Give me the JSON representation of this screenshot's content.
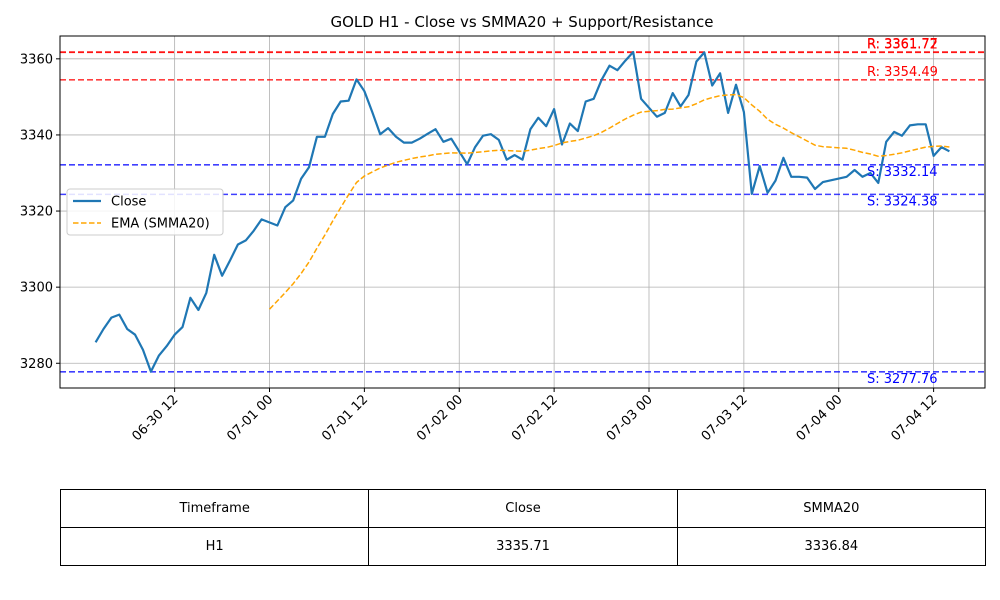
{
  "chart_data": {
    "type": "line",
    "title": "GOLD H1 - Close vs SMMA20 + Support/Resistance",
    "xlabel": "",
    "ylabel": "",
    "x_range": [
      "2025-06-29 21:30",
      "2025-07-04 18:30"
    ],
    "ylim": [
      3273.5,
      3366
    ],
    "y_ticks": [
      3280,
      3300,
      3320,
      3340,
      3360
    ],
    "x_ticks": [
      {
        "label": "06-30 12",
        "time": "2025-06-30 12:00"
      },
      {
        "label": "07-01 00",
        "time": "2025-07-01 00:00"
      },
      {
        "label": "07-01 12",
        "time": "2025-07-01 12:00"
      },
      {
        "label": "07-02 00",
        "time": "2025-07-02 00:00"
      },
      {
        "label": "07-02 12",
        "time": "2025-07-02 12:00"
      },
      {
        "label": "07-03 00",
        "time": "2025-07-03 00:00"
      },
      {
        "label": "07-03 12",
        "time": "2025-07-03 12:00"
      },
      {
        "label": "07-04 00",
        "time": "2025-07-04 00:00"
      },
      {
        "label": "07-04 12",
        "time": "2025-07-04 12:00"
      }
    ],
    "grid": true,
    "legend_position": "center-left",
    "series": [
      {
        "name": "Close",
        "color": "#1f77b4",
        "style": "solid",
        "points": [
          [
            "2025-06-30 02:00",
            3285.5
          ],
          [
            "2025-06-30 03:00",
            3289
          ],
          [
            "2025-06-30 04:00",
            3292
          ],
          [
            "2025-06-30 05:00",
            3292.8
          ],
          [
            "2025-06-30 06:00",
            3289
          ],
          [
            "2025-06-30 07:00",
            3287.5
          ],
          [
            "2025-06-30 08:00",
            3283.5
          ],
          [
            "2025-06-30 09:00",
            3277.8
          ],
          [
            "2025-06-30 10:00",
            3282
          ],
          [
            "2025-06-30 11:00",
            3284.5
          ],
          [
            "2025-06-30 12:00",
            3287.5
          ],
          [
            "2025-06-30 13:00",
            3289.5
          ],
          [
            "2025-06-30 14:00",
            3297.2
          ],
          [
            "2025-06-30 15:00",
            3294
          ],
          [
            "2025-06-30 16:00",
            3298.5
          ],
          [
            "2025-06-30 17:00",
            3308.5
          ],
          [
            "2025-06-30 18:00",
            3303
          ],
          [
            "2025-06-30 19:00",
            3307
          ],
          [
            "2025-06-30 20:00",
            3311.2
          ],
          [
            "2025-06-30 21:00",
            3312.3
          ],
          [
            "2025-06-30 22:00",
            3314.8
          ],
          [
            "2025-06-30 23:00",
            3317.8
          ],
          [
            "2025-07-01 01:00",
            3316.2
          ],
          [
            "2025-07-01 02:00",
            3321
          ],
          [
            "2025-07-01 03:00",
            3322.8
          ],
          [
            "2025-07-01 04:00",
            3328.5
          ],
          [
            "2025-07-01 05:00",
            3331.5
          ],
          [
            "2025-07-01 06:00",
            3339.5
          ],
          [
            "2025-07-01 07:00",
            3339.5
          ],
          [
            "2025-07-01 08:00",
            3345.5
          ],
          [
            "2025-07-01 09:00",
            3348.8
          ],
          [
            "2025-07-01 10:00",
            3349
          ],
          [
            "2025-07-01 11:00",
            3354.6
          ],
          [
            "2025-07-01 12:00",
            3351.5
          ],
          [
            "2025-07-01 13:00",
            3346
          ],
          [
            "2025-07-01 14:00",
            3340.2
          ],
          [
            "2025-07-01 15:00",
            3341.8
          ],
          [
            "2025-07-01 16:00",
            3339.5
          ],
          [
            "2025-07-01 17:00",
            3338
          ],
          [
            "2025-07-01 18:00",
            3338
          ],
          [
            "2025-07-01 19:00",
            3339
          ],
          [
            "2025-07-01 20:00",
            3340.3
          ],
          [
            "2025-07-01 21:00",
            3341.5
          ],
          [
            "2025-07-01 22:00",
            3338.2
          ],
          [
            "2025-07-01 23:00",
            3339
          ],
          [
            "2025-07-02 01:00",
            3332.3
          ],
          [
            "2025-07-02 02:00",
            3336.8
          ],
          [
            "2025-07-02 03:00",
            3339.8
          ],
          [
            "2025-07-02 04:00",
            3340.2
          ],
          [
            "2025-07-02 05:00",
            3338.7
          ],
          [
            "2025-07-02 06:00",
            3333.5
          ],
          [
            "2025-07-02 07:00",
            3334.7
          ],
          [
            "2025-07-02 08:00",
            3333.5
          ],
          [
            "2025-07-02 09:00",
            3341.5
          ],
          [
            "2025-07-02 10:00",
            3344.5
          ],
          [
            "2025-07-02 11:00",
            3342.3
          ],
          [
            "2025-07-02 12:00",
            3346.8
          ],
          [
            "2025-07-02 13:00",
            3337.5
          ],
          [
            "2025-07-02 14:00",
            3343
          ],
          [
            "2025-07-02 15:00",
            3341
          ],
          [
            "2025-07-02 16:00",
            3348.8
          ],
          [
            "2025-07-02 17:00",
            3349.5
          ],
          [
            "2025-07-02 18:00",
            3354.5
          ],
          [
            "2025-07-02 19:00",
            3358.2
          ],
          [
            "2025-07-02 20:00",
            3357
          ],
          [
            "2025-07-02 21:00",
            3359.5
          ],
          [
            "2025-07-02 22:00",
            3361.8
          ],
          [
            "2025-07-02 23:00",
            3349.5
          ],
          [
            "2025-07-03 01:00",
            3344.8
          ],
          [
            "2025-07-03 02:00",
            3345.8
          ],
          [
            "2025-07-03 03:00",
            3351
          ],
          [
            "2025-07-03 04:00",
            3347.5
          ],
          [
            "2025-07-03 05:00",
            3350.5
          ],
          [
            "2025-07-03 06:00",
            3359.3
          ],
          [
            "2025-07-03 07:00",
            3361.7
          ],
          [
            "2025-07-03 08:00",
            3353
          ],
          [
            "2025-07-03 09:00",
            3356.2
          ],
          [
            "2025-07-03 10:00",
            3345.8
          ],
          [
            "2025-07-03 11:00",
            3353.2
          ],
          [
            "2025-07-03 12:00",
            3346
          ],
          [
            "2025-07-03 13:00",
            3324.5
          ],
          [
            "2025-07-03 14:00",
            3331.8
          ],
          [
            "2025-07-03 15:00",
            3324.8
          ],
          [
            "2025-07-03 16:00",
            3328
          ],
          [
            "2025-07-03 17:00",
            3334
          ],
          [
            "2025-07-03 18:00",
            3329
          ],
          [
            "2025-07-03 19:00",
            3329
          ],
          [
            "2025-07-03 20:00",
            3328.8
          ],
          [
            "2025-07-03 21:00",
            3325.8
          ],
          [
            "2025-07-03 22:00",
            3327.6
          ],
          [
            "2025-07-04 01:00",
            3329
          ],
          [
            "2025-07-04 02:00",
            3330.8
          ],
          [
            "2025-07-04 03:00",
            3329
          ],
          [
            "2025-07-04 04:00",
            3330
          ],
          [
            "2025-07-04 05:00",
            3327.4
          ],
          [
            "2025-07-04 06:00",
            3338.2
          ],
          [
            "2025-07-04 07:00",
            3340.8
          ],
          [
            "2025-07-04 08:00",
            3339.8
          ],
          [
            "2025-07-04 09:00",
            3342.5
          ],
          [
            "2025-07-04 10:00",
            3342.8
          ],
          [
            "2025-07-04 11:00",
            3342.8
          ],
          [
            "2025-07-04 12:00",
            3334.5
          ],
          [
            "2025-07-04 13:00",
            3336.8
          ],
          [
            "2025-07-04 14:00",
            3335.71
          ]
        ]
      },
      {
        "name": "EMA (SMMA20)",
        "color": "#ffa500",
        "style": "dashed",
        "points": [
          [
            "2025-07-01 00:00",
            3294.2
          ],
          [
            "2025-07-01 01:00",
            3296.4
          ],
          [
            "2025-07-01 02:00",
            3298.6
          ],
          [
            "2025-07-01 03:00",
            3300.9
          ],
          [
            "2025-07-01 04:00",
            3303.6
          ],
          [
            "2025-07-01 05:00",
            3306.6
          ],
          [
            "2025-07-01 06:00",
            3310.2
          ],
          [
            "2025-07-01 07:00",
            3313.7
          ],
          [
            "2025-07-01 08:00",
            3317.4
          ],
          [
            "2025-07-01 09:00",
            3320.9
          ],
          [
            "2025-07-01 10:00",
            3324.3
          ],
          [
            "2025-07-01 11:00",
            3327.5
          ],
          [
            "2025-07-01 12:00",
            3329.2
          ],
          [
            "2025-07-01 13:00",
            3330.3
          ],
          [
            "2025-07-01 14:00",
            3331.3
          ],
          [
            "2025-07-01 15:00",
            3332.1
          ],
          [
            "2025-07-01 16:00",
            3332.8
          ],
          [
            "2025-07-01 17:00",
            3333.3
          ],
          [
            "2025-07-01 18:00",
            3333.8
          ],
          [
            "2025-07-01 19:00",
            3334.2
          ],
          [
            "2025-07-01 20:00",
            3334.5
          ],
          [
            "2025-07-01 21:00",
            3334.9
          ],
          [
            "2025-07-01 22:00",
            3335.1
          ],
          [
            "2025-07-01 23:00",
            3335.3
          ],
          [
            "2025-07-02 01:00",
            3335.2
          ],
          [
            "2025-07-02 02:00",
            3335.4
          ],
          [
            "2025-07-02 03:00",
            3335.6
          ],
          [
            "2025-07-02 04:00",
            3335.8
          ],
          [
            "2025-07-02 05:00",
            3336.0
          ],
          [
            "2025-07-02 06:00",
            3335.9
          ],
          [
            "2025-07-02 07:00",
            3335.8
          ],
          [
            "2025-07-02 08:00",
            3335.7
          ],
          [
            "2025-07-02 09:00",
            3336.0
          ],
          [
            "2025-07-02 10:00",
            3336.4
          ],
          [
            "2025-07-02 11:00",
            3336.7
          ],
          [
            "2025-07-02 12:00",
            3337.2
          ],
          [
            "2025-07-02 13:00",
            3337.9
          ],
          [
            "2025-07-02 14:00",
            3338.3
          ],
          [
            "2025-07-02 15:00",
            3338.6
          ],
          [
            "2025-07-02 16:00",
            3339.2
          ],
          [
            "2025-07-02 17:00",
            3339.8
          ],
          [
            "2025-07-02 18:00",
            3340.7
          ],
          [
            "2025-07-02 19:00",
            3341.8
          ],
          [
            "2025-07-02 20:00",
            3343.0
          ],
          [
            "2025-07-02 21:00",
            3344.2
          ],
          [
            "2025-07-02 22:00",
            3345.2
          ],
          [
            "2025-07-02 23:00",
            3346.0
          ],
          [
            "2025-07-03 01:00",
            3346.4
          ],
          [
            "2025-07-03 02:00",
            3346.7
          ],
          [
            "2025-07-03 03:00",
            3346.8
          ],
          [
            "2025-07-03 04:00",
            3347.1
          ],
          [
            "2025-07-03 05:00",
            3347.4
          ],
          [
            "2025-07-03 06:00",
            3348.2
          ],
          [
            "2025-07-03 07:00",
            3349.2
          ],
          [
            "2025-07-03 08:00",
            3349.8
          ],
          [
            "2025-07-03 09:00",
            3350.3
          ],
          [
            "2025-07-03 10:00",
            3350.5
          ],
          [
            "2025-07-03 11:00",
            3350.6
          ],
          [
            "2025-07-03 12:00",
            3349.8
          ],
          [
            "2025-07-03 13:00",
            3347.9
          ],
          [
            "2025-07-03 14:00",
            3346.2
          ],
          [
            "2025-07-03 15:00",
            3344.1
          ],
          [
            "2025-07-03 16:00",
            3342.8
          ],
          [
            "2025-07-03 17:00",
            3341.8
          ],
          [
            "2025-07-03 18:00",
            3340.6
          ],
          [
            "2025-07-03 19:00",
            3339.5
          ],
          [
            "2025-07-03 20:00",
            3338.4
          ],
          [
            "2025-07-03 21:00",
            3337.3
          ],
          [
            "2025-07-03 22:00",
            3336.9
          ],
          [
            "2025-07-04 01:00",
            3336.5
          ],
          [
            "2025-07-04 02:00",
            3336.0
          ],
          [
            "2025-07-04 03:00",
            3335.4
          ],
          [
            "2025-07-04 04:00",
            3335.0
          ],
          [
            "2025-07-04 05:00",
            3334.4
          ],
          [
            "2025-07-04 06:00",
            3334.6
          ],
          [
            "2025-07-04 07:00",
            3334.9
          ],
          [
            "2025-07-04 08:00",
            3335.3
          ],
          [
            "2025-07-04 09:00",
            3335.8
          ],
          [
            "2025-07-04 10:00",
            3336.3
          ],
          [
            "2025-07-04 11:00",
            3336.8
          ],
          [
            "2025-07-04 12:00",
            3337.0
          ],
          [
            "2025-07-04 13:00",
            3337.1
          ],
          [
            "2025-07-04 14:00",
            3336.84
          ]
        ]
      }
    ],
    "levels": [
      {
        "label": "R: 3361.72",
        "value": 3361.72,
        "type": "resistance",
        "color": "#ff0000"
      },
      {
        "label": "R: 3361.77",
        "value": 3361.77,
        "type": "resistance",
        "color": "#ff0000"
      },
      {
        "label": "R: 3354.49",
        "value": 3354.49,
        "type": "resistance",
        "color": "#ff0000"
      },
      {
        "label": "S: 3332.14",
        "value": 3332.14,
        "type": "support",
        "color": "#0000ff"
      },
      {
        "label": "S: 3324.38",
        "value": 3324.38,
        "type": "support",
        "color": "#0000ff"
      },
      {
        "label": "S: 3277.76",
        "value": 3277.76,
        "type": "support",
        "color": "#0000ff"
      }
    ]
  },
  "table": {
    "headers": [
      "Timeframe",
      "Close",
      "SMMA20"
    ],
    "rows": [
      [
        "H1",
        "3335.71",
        "3336.84"
      ]
    ]
  }
}
